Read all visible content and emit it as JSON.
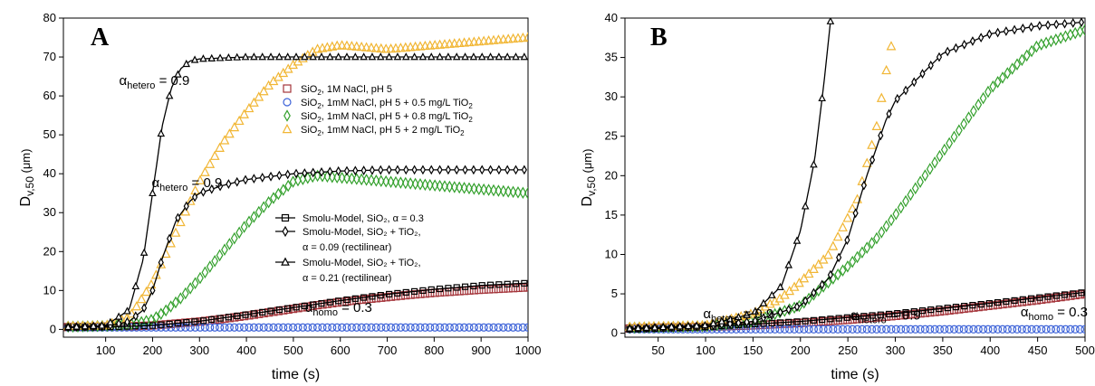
{
  "chart_data": [
    {
      "panel": "A",
      "type": "scatter",
      "xlabel": "time (s)",
      "ylabel": "D",
      "ylabel_sub": "v,50",
      "ylabel_unit": "(μm)",
      "xlim": [
        10,
        1000
      ],
      "ylim": [
        -2,
        80
      ],
      "xticks": [
        100,
        200,
        300,
        400,
        500,
        600,
        700,
        800,
        900,
        1000
      ],
      "yticks": [
        0,
        10,
        20,
        30,
        40,
        50,
        60,
        70,
        80
      ],
      "annotations": [
        {
          "text": "α",
          "sub": "hetero",
          "suffix": " = 0.9",
          "at": [
            12,
            79
          ]
        },
        {
          "text": "α",
          "sub": "hetero",
          "suffix": " = 0.9",
          "at": [
            19,
            47
          ]
        },
        {
          "text": "α",
          "sub": "homo",
          "suffix": " = 0.3",
          "at": [
            52,
            8
          ]
        }
      ],
      "legend_placement": "upper-right, center, lower-right",
      "series": [
        {
          "name": "SiO₂, 1M NaCl, pH 5",
          "kind": "data",
          "marker": "square",
          "color": "#a4343a",
          "points": [
            [
              20,
              0.6
            ],
            [
              60,
              0.6
            ],
            [
              100,
              0.7
            ],
            [
              150,
              0.8
            ],
            [
              200,
              1.0
            ],
            [
              250,
              1.5
            ],
            [
              300,
              2.0
            ],
            [
              350,
              2.7
            ],
            [
              400,
              3.5
            ],
            [
              450,
              4.4
            ],
            [
              500,
              5.3
            ],
            [
              550,
              6.2
            ],
            [
              600,
              7.0
            ],
            [
              650,
              7.7
            ],
            [
              700,
              8.3
            ],
            [
              750,
              8.9
            ],
            [
              800,
              9.4
            ],
            [
              850,
              9.8
            ],
            [
              900,
              10.2
            ],
            [
              950,
              10.5
            ],
            [
              1000,
              10.8
            ]
          ]
        },
        {
          "name": "SiO₂, 1mM NaCl, pH 5 + 0.5 mg/L TiO₂",
          "kind": "data",
          "marker": "circle",
          "color": "#3d63d8",
          "points": [
            [
              20,
              0.5
            ],
            [
              100,
              0.5
            ],
            [
              200,
              0.5
            ],
            [
              300,
              0.5
            ],
            [
              400,
              0.5
            ],
            [
              500,
              0.5
            ],
            [
              600,
              0.5
            ],
            [
              700,
              0.5
            ],
            [
              800,
              0.5
            ],
            [
              900,
              0.5
            ],
            [
              1000,
              0.5
            ]
          ]
        },
        {
          "name": "SiO₂, 1mM NaCl, pH 5 + 0.8 mg/L TiO₂",
          "kind": "data",
          "marker": "diamond",
          "color": "#33a02c",
          "points": [
            [
              20,
              0.7
            ],
            [
              100,
              0.9
            ],
            [
              150,
              1.2
            ],
            [
              200,
              2.5
            ],
            [
              230,
              5
            ],
            [
              260,
              8
            ],
            [
              300,
              13
            ],
            [
              350,
              20
            ],
            [
              400,
              27
            ],
            [
              450,
              33
            ],
            [
              500,
              38
            ],
            [
              550,
              39.5
            ],
            [
              600,
              39
            ],
            [
              700,
              38
            ],
            [
              800,
              37
            ],
            [
              900,
              36
            ],
            [
              1000,
              35
            ]
          ]
        },
        {
          "name": "SiO₂, 1mM NaCl, pH 5 + 2 mg/L TiO₂",
          "kind": "data",
          "marker": "triangle",
          "color": "#f1b634",
          "points": [
            [
              20,
              0.8
            ],
            [
              100,
              1.0
            ],
            [
              150,
              3
            ],
            [
              200,
              12
            ],
            [
              250,
              25
            ],
            [
              300,
              38
            ],
            [
              350,
              48
            ],
            [
              400,
              56
            ],
            [
              450,
              63
            ],
            [
              500,
              68
            ],
            [
              550,
              72
            ],
            [
              600,
              73
            ],
            [
              700,
              72
            ],
            [
              800,
              73
            ],
            [
              900,
              74
            ],
            [
              1000,
              75
            ]
          ]
        },
        {
          "name": "Smolu-Model, SiO₂, α = 0.3",
          "kind": "model",
          "marker": "square",
          "color": "#000000",
          "points": [
            [
              20,
              0.5
            ],
            [
              100,
              0.6
            ],
            [
              200,
              1.0
            ],
            [
              300,
              2.1
            ],
            [
              400,
              3.8
            ],
            [
              500,
              5.6
            ],
            [
              600,
              7.4
            ],
            [
              700,
              9.0
            ],
            [
              800,
              10.3
            ],
            [
              900,
              11.3
            ],
            [
              1000,
              11.9
            ]
          ]
        },
        {
          "name": "Smolu-Model, SiO₂ + TiO₂, α = 0.09 (rectilinear)",
          "kind": "model",
          "marker": "diamond",
          "color": "#000000",
          "points": [
            [
              20,
              0.6
            ],
            [
              100,
              0.8
            ],
            [
              150,
              2
            ],
            [
              180,
              5
            ],
            [
              200,
              10
            ],
            [
              220,
              18
            ],
            [
              250,
              28
            ],
            [
              280,
              33
            ],
            [
              300,
              35
            ],
            [
              350,
              37
            ],
            [
              400,
              38.5
            ],
            [
              500,
              40
            ],
            [
              600,
              40.7
            ],
            [
              700,
              41
            ],
            [
              800,
              41
            ],
            [
              1000,
              41
            ]
          ]
        },
        {
          "name": "Smolu-Model, SiO₂ + TiO₂, α = 0.21 (rectilinear)",
          "kind": "model",
          "marker": "triangle",
          "color": "#000000",
          "points": [
            [
              20,
              0.6
            ],
            [
              100,
              1.0
            ],
            [
              150,
              5
            ],
            [
              180,
              18
            ],
            [
              200,
              35
            ],
            [
              220,
              52
            ],
            [
              240,
              62
            ],
            [
              260,
              67
            ],
            [
              280,
              69
            ],
            [
              300,
              69.5
            ],
            [
              400,
              70
            ],
            [
              500,
              70
            ],
            [
              700,
              70
            ],
            [
              1000,
              70
            ]
          ]
        }
      ],
      "legend_entries": [
        {
          "series": 0,
          "text": "SiO",
          "sub": "2",
          "rest": ", 1M NaCl, pH 5"
        },
        {
          "series": 1,
          "text": "SiO",
          "sub": "2",
          "rest": ", 1mM NaCl, pH 5 + 0.5 mg/L TiO",
          "sub2": "2"
        },
        {
          "series": 2,
          "text": "SiO",
          "sub": "2",
          "rest": ", 1mM NaCl, pH 5 + 0.8 mg/L TiO",
          "sub2": "2"
        },
        {
          "series": 3,
          "text": "SiO",
          "sub": "2",
          "rest": ", 1mM NaCl, pH 5 + 2 mg/L TiO",
          "sub2": "2"
        }
      ],
      "model_legend_entries": [
        {
          "series": 4,
          "line1": "Smolu-Model, SiO₂, α = 0.3"
        },
        {
          "series": 5,
          "line1": "Smolu-Model, SiO₂ + TiO₂,",
          "line2": "α = 0.09 (rectilinear)"
        },
        {
          "series": 6,
          "line1": "Smolu-Model, SiO₂ + TiO₂,",
          "line2": "α = 0.21 (rectilinear)"
        }
      ]
    },
    {
      "panel": "B",
      "type": "scatter",
      "xlabel": "time (s)",
      "ylabel": "D",
      "ylabel_sub": "v,50",
      "ylabel_unit": "(μm)",
      "xlim": [
        15,
        500
      ],
      "ylim": [
        -0.5,
        40
      ],
      "xticks": [
        50,
        100,
        150,
        200,
        250,
        300,
        350,
        400,
        450,
        500
      ],
      "yticks": [
        0,
        5,
        10,
        15,
        20,
        25,
        30,
        35,
        40
      ],
      "annotations": [
        {
          "text": "α",
          "sub": "hetero",
          "suffix": " = 0.9",
          "at": [
            17,
            6
          ]
        },
        {
          "text": "α",
          "sub": "hetero",
          "suffix": " = 0.9",
          "at": [
            49,
            5.5
          ]
        },
        {
          "text": "α",
          "sub": "homo",
          "suffix": " = 0.3",
          "at": [
            86,
            6.5
          ]
        }
      ],
      "series": [
        {
          "name": "SiO₂, 1M NaCl, pH 5",
          "kind": "data",
          "marker": "square",
          "color": "#a4343a",
          "points": [
            [
              20,
              0.6
            ],
            [
              50,
              0.7
            ],
            [
              100,
              0.8
            ],
            [
              150,
              1.0
            ],
            [
              200,
              1.3
            ],
            [
              250,
              1.7
            ],
            [
              300,
              2.2
            ],
            [
              350,
              2.8
            ],
            [
              400,
              3.5
            ],
            [
              450,
              4.2
            ],
            [
              500,
              5.0
            ]
          ]
        },
        {
          "name": "SiO₂, 1mM NaCl, pH 5 + 0.5 mg/L TiO₂",
          "kind": "data",
          "marker": "circle",
          "color": "#3d63d8",
          "points": [
            [
              20,
              0.5
            ],
            [
              100,
              0.5
            ],
            [
              200,
              0.5
            ],
            [
              300,
              0.5
            ],
            [
              400,
              0.5
            ],
            [
              500,
              0.5
            ]
          ]
        },
        {
          "name": "SiO₂, 1mM NaCl, pH 5 + 0.8 mg/L TiO₂",
          "kind": "data",
          "marker": "diamond",
          "color": "#33a02c",
          "points": [
            [
              20,
              0.7
            ],
            [
              100,
              0.9
            ],
            [
              150,
              1.5
            ],
            [
              200,
              3.5
            ],
            [
              220,
              5.5
            ],
            [
              250,
              8.5
            ],
            [
              280,
              12
            ],
            [
              300,
              15
            ],
            [
              350,
              23
            ],
            [
              400,
              31
            ],
            [
              450,
              36.5
            ],
            [
              500,
              38.5
            ]
          ]
        },
        {
          "name": "SiO₂, 1mM NaCl, pH 5 + 2 mg/L TiO₂",
          "kind": "data",
          "marker": "triangle",
          "color": "#f1b634",
          "points": [
            [
              20,
              0.8
            ],
            [
              100,
              1.0
            ],
            [
              150,
              2.5
            ],
            [
              180,
              4.5
            ],
            [
              200,
              6.5
            ],
            [
              230,
              10
            ],
            [
              260,
              17
            ],
            [
              280,
              26
            ],
            [
              290,
              33
            ],
            [
              300,
              39
            ]
          ]
        },
        {
          "name": "Smolu-Model, SiO₂, α = 0.3",
          "kind": "model",
          "marker": "square",
          "color": "#000000",
          "points": [
            [
              20,
              0.5
            ],
            [
              100,
              0.8
            ],
            [
              200,
              1.5
            ],
            [
              300,
              2.5
            ],
            [
              400,
              3.8
            ],
            [
              500,
              5.2
            ]
          ]
        },
        {
          "name": "Smolu-Model, SiO₂ + TiO₂, α = 0.09 (rectilinear)",
          "kind": "model",
          "marker": "diamond",
          "color": "#000000",
          "points": [
            [
              20,
              0.6
            ],
            [
              100,
              0.9
            ],
            [
              150,
              1.5
            ],
            [
              200,
              3.5
            ],
            [
              230,
              7
            ],
            [
              250,
              12
            ],
            [
              270,
              20
            ],
            [
              290,
              27
            ],
            [
              300,
              29.5
            ],
            [
              350,
              35.5
            ],
            [
              400,
              38
            ],
            [
              450,
              39
            ],
            [
              500,
              39.5
            ]
          ]
        },
        {
          "name": "Smolu-Model, SiO₂ + TiO₂, α = 0.21 (rectilinear)",
          "kind": "model",
          "marker": "triangle",
          "color": "#000000",
          "points": [
            [
              20,
              0.6
            ],
            [
              100,
              1.0
            ],
            [
              150,
              2.5
            ],
            [
              180,
              6
            ],
            [
              200,
              13
            ],
            [
              215,
              22
            ],
            [
              225,
              32
            ],
            [
              232,
              40
            ]
          ]
        }
      ]
    }
  ]
}
